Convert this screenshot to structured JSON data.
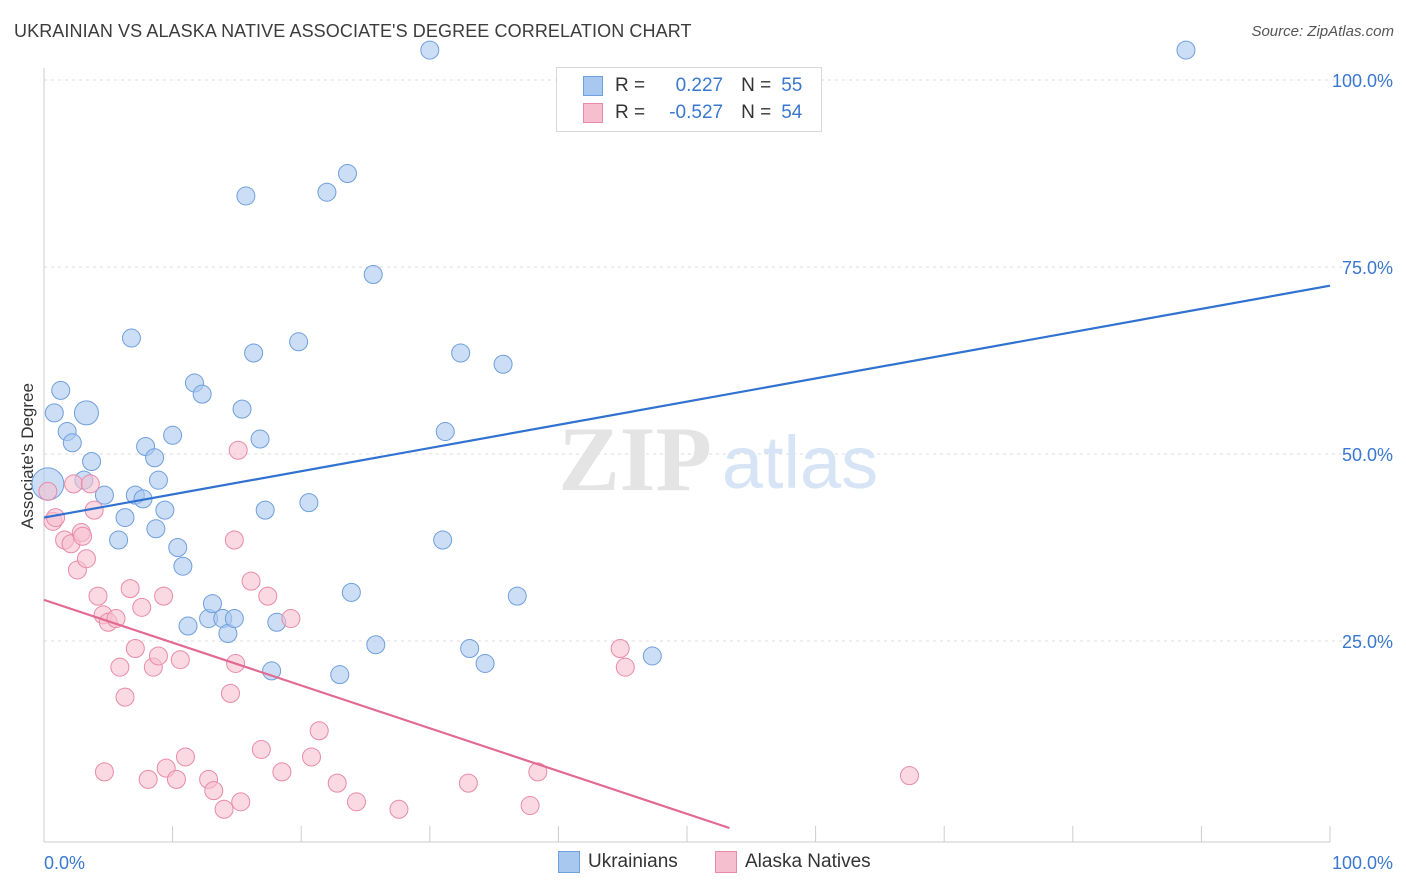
{
  "title": "UKRAINIAN VS ALASKA NATIVE ASSOCIATE'S DEGREE CORRELATION CHART",
  "source": "Source: ZipAtlas.com",
  "legend_top": {
    "rows": [
      {
        "r_label": "R =",
        "r_value": "0.227",
        "n_label": "N =",
        "n_value": "55",
        "color": "#a9c8f0",
        "border": "#6f9fdc"
      },
      {
        "r_label": "R =",
        "r_value": "-0.527",
        "n_label": "N =",
        "n_value": "54",
        "color": "#f6bfd0",
        "border": "#e88aa8"
      }
    ]
  },
  "legend_bottom": [
    {
      "label": "Ukrainians",
      "color": "#a9c8f0",
      "border": "#6f9fdc"
    },
    {
      "label": "Alaska Natives",
      "color": "#f6bfd0",
      "border": "#e88aa8"
    }
  ],
  "watermark": {
    "part1": "ZIP",
    "part2": "atlas"
  },
  "chart_data": {
    "type": "scatter",
    "title": "UKRAINIAN VS ALASKA NATIVE ASSOCIATE'S DEGREE CORRELATION CHART",
    "xlabel": "",
    "ylabel": "Associate's Degree",
    "xlim": [
      0,
      100
    ],
    "ylim": [
      0,
      100
    ],
    "x_tick_labels": [
      "0.0%",
      "100.0%"
    ],
    "y_ticks": [
      25,
      50,
      75,
      100
    ],
    "y_tick_labels": [
      "25.0%",
      "50.0%",
      "75.0%",
      "100.0%"
    ],
    "grid": true,
    "legend_position": "top-center",
    "series": [
      {
        "name": "Ukrainians",
        "color": "#a9c8f0",
        "edge": "#6f9fdc",
        "trend_color": "#2f72d0",
        "trend": [
          [
            0,
            41.5
          ],
          [
            100,
            72.5
          ]
        ],
        "points": [
          [
            0.3,
            46
          ],
          [
            0.8,
            55.5
          ],
          [
            1.3,
            58.5
          ],
          [
            1.8,
            53
          ],
          [
            2.2,
            51.5
          ],
          [
            3.1,
            46.5
          ],
          [
            3.3,
            55.5
          ],
          [
            3.7,
            49
          ],
          [
            4.7,
            44.5
          ],
          [
            5.8,
            38.5
          ],
          [
            6.3,
            41.5
          ],
          [
            6.8,
            65.5
          ],
          [
            7.1,
            44.5
          ],
          [
            7.9,
            51
          ],
          [
            7.7,
            44
          ],
          [
            8.6,
            49.5
          ],
          [
            8.9,
            46.5
          ],
          [
            8.7,
            40
          ],
          [
            9.4,
            42.5
          ],
          [
            10.0,
            52.5
          ],
          [
            10.4,
            37.5
          ],
          [
            10.8,
            35
          ],
          [
            11.2,
            27
          ],
          [
            11.7,
            59.5
          ],
          [
            12.3,
            58
          ],
          [
            12.8,
            28
          ],
          [
            13.1,
            30
          ],
          [
            13.9,
            28
          ],
          [
            14.3,
            26
          ],
          [
            14.8,
            28
          ],
          [
            15.4,
            56
          ],
          [
            15.7,
            84.5
          ],
          [
            16.3,
            63.5
          ],
          [
            16.8,
            52
          ],
          [
            17.2,
            42.5
          ],
          [
            17.7,
            21
          ],
          [
            18.1,
            27.5
          ],
          [
            19.8,
            65
          ],
          [
            20.6,
            43.5
          ],
          [
            22.0,
            85
          ],
          [
            23.0,
            20.5
          ],
          [
            23.6,
            87.5
          ],
          [
            23.9,
            31.5
          ],
          [
            25.6,
            74
          ],
          [
            25.8,
            24.5
          ],
          [
            30.0,
            104
          ],
          [
            31.0,
            38.5
          ],
          [
            31.2,
            53
          ],
          [
            32.4,
            63.5
          ],
          [
            33.1,
            24
          ],
          [
            34.3,
            22
          ],
          [
            35.7,
            62
          ],
          [
            36.8,
            31
          ],
          [
            47.3,
            23
          ],
          [
            88.8,
            104
          ]
        ],
        "sizes": [
          16,
          9,
          9,
          9,
          9,
          9,
          12,
          9,
          9,
          9,
          9,
          9,
          9,
          9,
          9,
          9,
          9,
          9,
          9,
          9,
          9,
          9,
          9,
          9,
          9,
          9,
          9,
          9,
          9,
          9,
          9,
          9,
          9,
          9,
          9,
          9,
          9,
          9,
          9,
          9,
          9,
          9,
          9,
          9,
          9,
          9,
          9,
          9,
          9,
          9,
          9,
          9,
          9,
          9,
          9
        ]
      },
      {
        "name": "Alaska Natives",
        "color": "#f6bfd0",
        "edge": "#e88aa8",
        "trend_color": "#e26a92",
        "trend": [
          [
            0,
            30.5
          ],
          [
            53.3,
            0
          ]
        ],
        "points": [
          [
            0.3,
            45
          ],
          [
            0.7,
            41
          ],
          [
            0.9,
            41.5
          ],
          [
            1.6,
            38.5
          ],
          [
            2.1,
            38
          ],
          [
            2.3,
            46
          ],
          [
            2.6,
            34.5
          ],
          [
            2.9,
            39.5
          ],
          [
            3.0,
            39
          ],
          [
            3.3,
            36
          ],
          [
            3.6,
            46
          ],
          [
            3.9,
            42.5
          ],
          [
            4.2,
            31
          ],
          [
            4.6,
            28.5
          ],
          [
            4.7,
            7.5
          ],
          [
            5.0,
            27.5
          ],
          [
            5.6,
            28
          ],
          [
            5.9,
            21.5
          ],
          [
            6.3,
            17.5
          ],
          [
            6.7,
            32
          ],
          [
            7.1,
            24
          ],
          [
            7.6,
            29.5
          ],
          [
            8.1,
            6.5
          ],
          [
            8.5,
            21.5
          ],
          [
            8.9,
            23
          ],
          [
            9.3,
            31
          ],
          [
            9.5,
            8
          ],
          [
            10.3,
            6.5
          ],
          [
            10.6,
            22.5
          ],
          [
            11.0,
            9.5
          ],
          [
            12.8,
            6.5
          ],
          [
            13.2,
            5
          ],
          [
            14.0,
            2.5
          ],
          [
            14.5,
            18
          ],
          [
            14.9,
            22
          ],
          [
            15.1,
            50.5
          ],
          [
            14.8,
            38.5
          ],
          [
            15.3,
            3.5
          ],
          [
            16.1,
            33
          ],
          [
            16.9,
            10.5
          ],
          [
            17.4,
            31
          ],
          [
            18.5,
            7.5
          ],
          [
            19.2,
            28
          ],
          [
            20.8,
            9.5
          ],
          [
            21.4,
            13
          ],
          [
            22.8,
            6
          ],
          [
            24.3,
            3.5
          ],
          [
            27.6,
            2.5
          ],
          [
            33.0,
            6
          ],
          [
            37.8,
            3
          ],
          [
            38.4,
            7.5
          ],
          [
            44.8,
            24
          ],
          [
            45.2,
            21.5
          ],
          [
            67.3,
            7
          ]
        ],
        "sizes": [
          9,
          9,
          9,
          9,
          9,
          9,
          9,
          9,
          9,
          9,
          9,
          9,
          9,
          9,
          9,
          9,
          9,
          9,
          9,
          9,
          9,
          9,
          9,
          9,
          9,
          9,
          9,
          9,
          9,
          9,
          9,
          9,
          9,
          9,
          9,
          9,
          9,
          9,
          9,
          9,
          9,
          9,
          9,
          9,
          9,
          9,
          9,
          9,
          9,
          9,
          9,
          9,
          9,
          9
        ]
      }
    ]
  }
}
